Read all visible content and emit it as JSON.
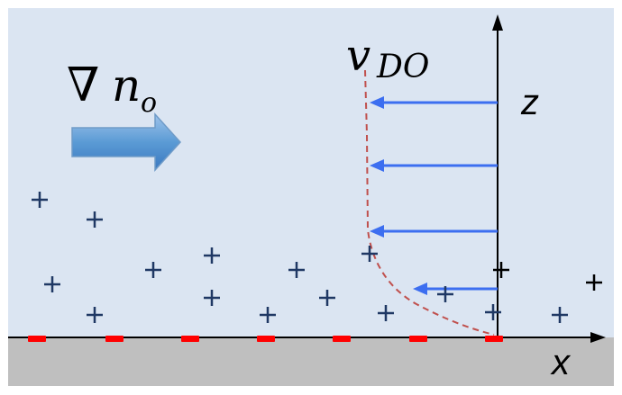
{
  "labels": {
    "gradient_symbol": "∇",
    "gradient_variable": "n",
    "gradient_subscript": "o",
    "velocity_variable": "v",
    "velocity_subscript": "DO",
    "z_axis": "z",
    "x_axis": "x"
  },
  "colors": {
    "fluid_background": "#dbe5f2",
    "substrate": "#bfbfbf",
    "flow_arrow": "#3c6ef0",
    "ion_plus": "#1f3864",
    "surface_charge": "#ff0000",
    "profile_curve": "#c0504d",
    "axis": "#000000",
    "gradient_arrow_fill": "#5b9bd5"
  },
  "icons": {
    "cation": "plus-sign",
    "surface_charge": "minus-dash",
    "gradient_direction": "block-arrow-right"
  }
}
